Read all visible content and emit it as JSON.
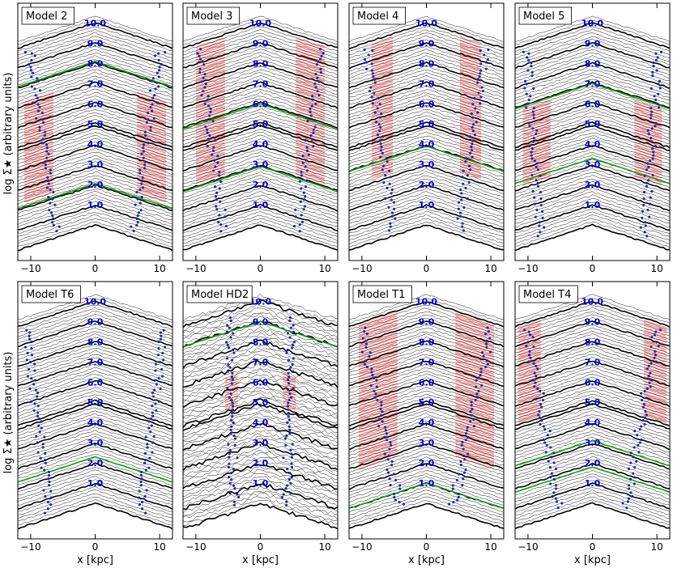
{
  "figure": {
    "ylabel": "log Σ★ (arbitrary units)",
    "xlabel": "x [kpc]"
  },
  "chart_data": [
    {
      "type": "line",
      "title": "Model 2",
      "xlabel": "x [kpc]",
      "ylabel": "log Σ★ (arbitrary units)",
      "xlim": [
        -12,
        12
      ],
      "xticks": [
        -10,
        0,
        10
      ],
      "time_labels": [
        "1.0",
        "2.0",
        "3.0",
        "4.0",
        "5.0",
        "6.0",
        "7.0",
        "8.0",
        "9.0",
        "10.0"
      ],
      "green_times": [
        2.05,
        8.1
      ],
      "break_region": {
        "from": 2.3,
        "to": 7.3,
        "inner": 6.5,
        "outer": 11.0
      },
      "breaks": {
        "start_r": 6.0,
        "end_r": 10.5
      }
    },
    {
      "type": "line",
      "title": "Model 3",
      "xlabel": "x [kpc]",
      "ylabel": "",
      "xlim": [
        -12,
        12
      ],
      "xticks": [
        -10,
        0,
        10
      ],
      "time_labels": [
        "1.0",
        "2.0",
        "3.0",
        "4.0",
        "5.0",
        "6.0",
        "7.0",
        "8.0",
        "9.0",
        "10.0"
      ],
      "green_times": [
        2.9,
        6.0
      ],
      "break_region": {
        "from": 3.1,
        "to": 9.9,
        "inner": 5.5,
        "outer": 10.0
      },
      "breaks": {
        "start_r": 5.5,
        "end_r": 10.0
      }
    },
    {
      "type": "line",
      "title": "Model 4",
      "xlabel": "x [kpc]",
      "ylabel": "",
      "xlim": [
        -12,
        12
      ],
      "xticks": [
        -10,
        0,
        10
      ],
      "time_labels": [
        "1.0",
        "2.0",
        "3.0",
        "4.0",
        "5.0",
        "6.0",
        "7.0",
        "8.0",
        "9.0",
        "10.0"
      ],
      "green_times": [
        3.9
      ],
      "break_region": {
        "from": 3.2,
        "to": 9.9,
        "inner": 5.2,
        "outer": 8.5
      },
      "breaks": {
        "start_r": 5.0,
        "end_r": 9.5
      }
    },
    {
      "type": "line",
      "title": "Model 5",
      "xlabel": "x [kpc]",
      "ylabel": "",
      "xlim": [
        -12,
        12
      ],
      "xticks": [
        -10,
        0,
        10
      ],
      "time_labels": [
        "1.0",
        "2.0",
        "3.0",
        "4.0",
        "5.0",
        "6.0",
        "7.0",
        "8.0",
        "9.0",
        "10.0"
      ],
      "green_times": [
        3.3,
        7.0
      ],
      "break_region": {
        "from": 3.1,
        "to": 6.9,
        "inner": 6.5,
        "outer": 10.8
      },
      "breaks": {
        "start_r": 8.0,
        "end_r": 10.5
      }
    },
    {
      "type": "line",
      "title": "Model T6",
      "xlabel": "x [kpc]",
      "ylabel": "log Σ★ (arbitrary units)",
      "xlim": [
        -12,
        12
      ],
      "xticks": [
        -10,
        0,
        10
      ],
      "time_labels": [
        "1.0",
        "2.0",
        "3.0",
        "4.0",
        "5.0",
        "6.0",
        "7.0",
        "8.0",
        "9.0",
        "10.0"
      ],
      "green_times": [
        2.3
      ],
      "break_region": null,
      "breaks": {
        "start_r": 7.0,
        "end_r": 11.0
      }
    },
    {
      "type": "line",
      "title": "Model HD2",
      "xlabel": "x [kpc]",
      "ylabel": "",
      "xlim": [
        -12,
        12
      ],
      "xticks": [
        -10,
        0,
        10
      ],
      "time_labels": [
        "1.0",
        "2.0",
        "3.0",
        "4.0",
        "5.0",
        "6.0",
        "7.0",
        "8.0",
        "9.0",
        "10.0"
      ],
      "green_times": [
        9.0
      ],
      "break_region": {
        "from": 5.2,
        "to": 6.8,
        "inner": 3.5,
        "outer": 5.5
      },
      "breaks": {
        "start_r": 4.0,
        "end_r": 5.0
      }
    },
    {
      "type": "line",
      "title": "Model T1",
      "xlabel": "x [kpc]",
      "ylabel": "",
      "xlim": [
        -12,
        12
      ],
      "xticks": [
        -10,
        0,
        10
      ],
      "time_labels": [
        "1.0",
        "2.0",
        "3.0",
        "4.0",
        "5.0",
        "6.0",
        "7.0",
        "8.0",
        "9.0",
        "10.0"
      ],
      "green_times": [
        1.0
      ],
      "break_region": {
        "from": 2.8,
        "to": 10.1,
        "inner": 4.5,
        "outer": 10.5
      },
      "breaks": {
        "start_r": 4.0,
        "end_r": 10.5
      }
    },
    {
      "type": "line",
      "title": "Model T4",
      "xlabel": "x [kpc]",
      "ylabel": "",
      "xlim": [
        -12,
        12
      ],
      "xticks": [
        -10,
        0,
        10
      ],
      "time_labels": [
        "1.0",
        "2.0",
        "3.0",
        "4.0",
        "5.0",
        "6.0",
        "7.0",
        "8.0",
        "9.0",
        "10.0"
      ],
      "green_times": [
        1.8,
        3.1
      ],
      "break_region": {
        "from": 5.2,
        "to": 10.0,
        "inner": 8.0,
        "outer": 11.5
      },
      "breaks": {
        "start_r": 5.0,
        "end_r": 10.5
      }
    }
  ]
}
